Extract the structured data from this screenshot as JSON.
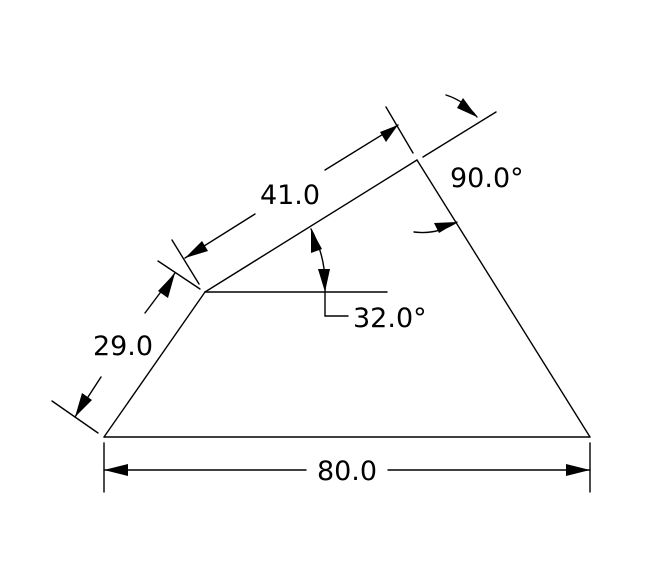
{
  "dimensions": {
    "bottom_length": "80.0",
    "left_side_length": "29.0",
    "top_side_length": "41.0",
    "inclination_angle": "32.0°",
    "corner_angle": "90.0°"
  },
  "colors": {
    "background": "#ffffff",
    "linework": "#000000"
  }
}
